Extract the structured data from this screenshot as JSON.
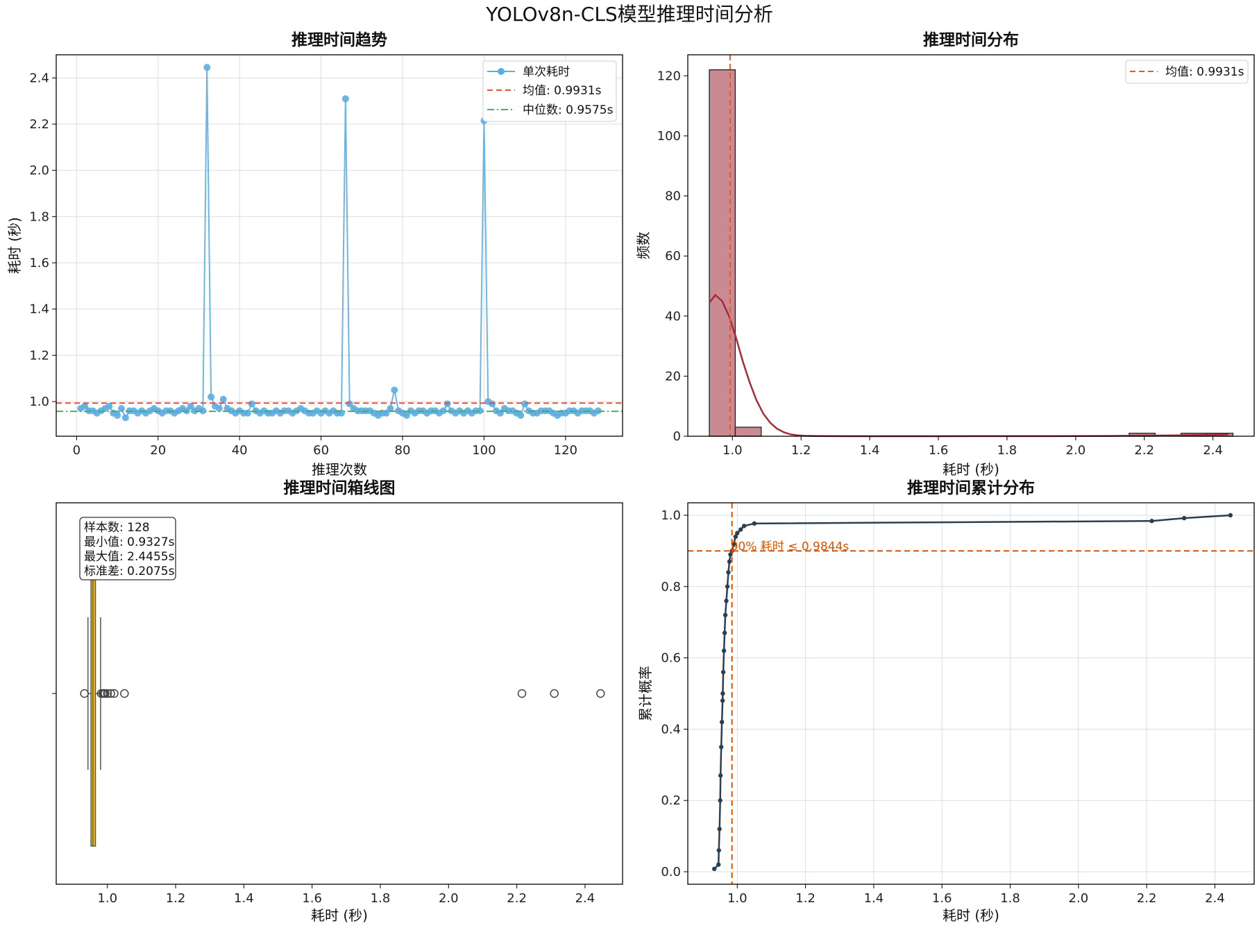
{
  "figure": {
    "title": "YOLOv8n-CLS模型推理时间分析"
  },
  "colors": {
    "trend_line": "#5dade2",
    "mean_line": "#e74c3c",
    "median_line": "#4caf50",
    "hist_bar": "#c98a91",
    "kde_line": "#a52a3a",
    "hist_mean_line": "#e4582a",
    "box_fill": "#f1c40f",
    "cdf_line": "#2c3e50",
    "cdf_ref_line": "#d35400"
  },
  "chart_data": [
    {
      "id": "trend",
      "type": "line",
      "title": "推理时间趋势",
      "xlabel": "推理次数",
      "ylabel": "耗时 (秒)",
      "xlim": [
        -5,
        134
      ],
      "ylim": [
        0.85,
        2.5
      ],
      "xticks": [
        "0",
        "20",
        "40",
        "60",
        "80",
        "100",
        "120"
      ],
      "yticks": [
        "1.0",
        "1.2",
        "1.4",
        "1.6",
        "1.8",
        "2.0",
        "2.2",
        "2.4"
      ],
      "grid": true,
      "legend_position": "top-right",
      "series": [
        {
          "name": "单次耗时",
          "x_start": 1,
          "values": [
            0.97,
            0.98,
            0.96,
            0.96,
            0.95,
            0.96,
            0.97,
            0.98,
            0.95,
            0.94,
            0.97,
            0.93,
            0.96,
            0.96,
            0.95,
            0.96,
            0.95,
            0.96,
            0.97,
            0.96,
            0.95,
            0.96,
            0.96,
            0.95,
            0.96,
            0.97,
            0.96,
            0.98,
            0.96,
            0.97,
            0.96,
            2.4455,
            1.02,
            0.98,
            0.97,
            1.01,
            0.97,
            0.96,
            0.95,
            0.96,
            0.95,
            0.95,
            0.99,
            0.96,
            0.95,
            0.96,
            0.95,
            0.95,
            0.96,
            0.95,
            0.96,
            0.96,
            0.95,
            0.96,
            0.97,
            0.96,
            0.95,
            0.95,
            0.96,
            0.95,
            0.96,
            0.95,
            0.96,
            0.95,
            0.95,
            2.31,
            0.99,
            0.97,
            0.96,
            0.96,
            0.96,
            0.96,
            0.95,
            0.94,
            0.95,
            0.95,
            0.97,
            1.05,
            0.96,
            0.95,
            0.94,
            0.96,
            0.95,
            0.96,
            0.96,
            0.95,
            0.96,
            0.96,
            0.95,
            0.96,
            0.99,
            0.96,
            0.95,
            0.96,
            0.95,
            0.96,
            0.95,
            0.96,
            0.96,
            2.215,
            1.0,
            0.99,
            0.96,
            0.95,
            0.97,
            0.96,
            0.96,
            0.95,
            0.94,
            0.99,
            0.96,
            0.95,
            0.95,
            0.96,
            0.96,
            0.96,
            0.95,
            0.94,
            0.95,
            0.95,
            0.96,
            0.96,
            0.95,
            0.96,
            0.96,
            0.96,
            0.95,
            0.96
          ]
        }
      ],
      "mean": {
        "label": "均值: 0.9931s",
        "value": 0.9931
      },
      "median": {
        "label": "中位数: 0.9575s",
        "value": 0.9575
      }
    },
    {
      "id": "hist",
      "type": "bar",
      "title": "推理时间分布",
      "xlabel": "耗时 (秒)",
      "ylabel": "频数",
      "xlim": [
        0.87,
        2.52
      ],
      "ylim": [
        0,
        127
      ],
      "xticks": [
        "1.0",
        "1.2",
        "1.4",
        "1.6",
        "1.8",
        "2.0",
        "2.2",
        "2.4"
      ],
      "yticks": [
        "0",
        "20",
        "40",
        "60",
        "80",
        "100",
        "120"
      ],
      "grid": false,
      "legend_position": "top-right",
      "bins": [
        {
          "x0": 0.9327,
          "x1": 1.0083,
          "count": 122
        },
        {
          "x0": 1.0083,
          "x1": 1.0839,
          "count": 3
        },
        {
          "x0": 2.1559,
          "x1": 2.2315,
          "count": 1
        },
        {
          "x0": 2.3071,
          "x1": 2.3827,
          "count": 1
        },
        {
          "x0": 2.3827,
          "x1": 2.4583,
          "count": 1
        }
      ],
      "kde": {
        "x": [
          0.933,
          0.95,
          0.97,
          0.99,
          1.01,
          1.03,
          1.05,
          1.07,
          1.09,
          1.11,
          1.13,
          1.15,
          1.17,
          1.19,
          1.21,
          1.25,
          1.3,
          1.4,
          1.6,
          1.8,
          2.0,
          2.1,
          2.2,
          2.3,
          2.4,
          2.445
        ],
        "y": [
          44.5,
          47,
          45,
          40,
          33,
          25,
          18,
          12,
          7.5,
          4.5,
          2.5,
          1.3,
          0.6,
          0.3,
          0.15,
          0.05,
          0.02,
          0.01,
          0.01,
          0.02,
          0.05,
          0.1,
          0.2,
          0.3,
          0.5,
          0.6
        ]
      },
      "mean": {
        "label": "均值: 0.9931s",
        "value": 0.9931
      }
    },
    {
      "id": "box",
      "type": "box",
      "title": "推理时间箱线图",
      "xlabel": "耗时 (秒)",
      "xlim": [
        0.85,
        2.51
      ],
      "xticks": [
        "1.0",
        "1.2",
        "1.4",
        "1.6",
        "1.8",
        "2.0",
        "2.2",
        "2.4"
      ],
      "box": {
        "q1": 0.952,
        "median": 0.9575,
        "q3": 0.965,
        "whisker_low": 0.943,
        "whisker_high": 0.98
      },
      "outliers": [
        0.9327,
        0.982,
        0.987,
        0.99,
        0.993,
        1.0,
        1.01,
        1.02,
        1.05,
        2.215,
        2.31,
        2.4455
      ],
      "stats_lines": [
        "样本数: 128",
        "最小值: 0.9327s",
        "最大值: 2.4455s",
        "标准差: 0.2075s"
      ]
    },
    {
      "id": "cdf",
      "type": "line",
      "title": "推理时间累计分布",
      "xlabel": "耗时 (秒)",
      "ylabel": "累计概率",
      "xlim": [
        0.855,
        2.515
      ],
      "ylim": [
        -0.035,
        1.035
      ],
      "xticks": [
        "1.0",
        "1.2",
        "1.4",
        "1.6",
        "1.8",
        "2.0",
        "2.2",
        "2.4"
      ],
      "yticks": [
        "0.0",
        "0.2",
        "0.4",
        "0.6",
        "0.8",
        "1.0"
      ],
      "grid": true,
      "series": [
        {
          "x": [
            0.9327,
            0.945,
            0.946,
            0.948,
            0.95,
            0.951,
            0.953,
            0.955,
            0.957,
            0.9575,
            0.959,
            0.961,
            0.963,
            0.965,
            0.968,
            0.971,
            0.974,
            0.977,
            0.98,
            0.9844,
            0.99,
            0.995,
            1.0,
            1.01,
            1.02,
            1.05,
            2.215,
            2.31,
            2.4455
          ],
          "y": [
            0.008,
            0.02,
            0.06,
            0.12,
            0.2,
            0.27,
            0.35,
            0.42,
            0.48,
            0.5,
            0.56,
            0.62,
            0.67,
            0.72,
            0.76,
            0.8,
            0.84,
            0.87,
            0.89,
            0.9,
            0.92,
            0.94,
            0.95,
            0.96,
            0.97,
            0.977,
            0.984,
            0.992,
            1.0
          ]
        }
      ],
      "reference": {
        "x": 0.9844,
        "y": 0.9,
        "label": "90% 耗时 ≤ 0.9844s"
      }
    }
  ]
}
